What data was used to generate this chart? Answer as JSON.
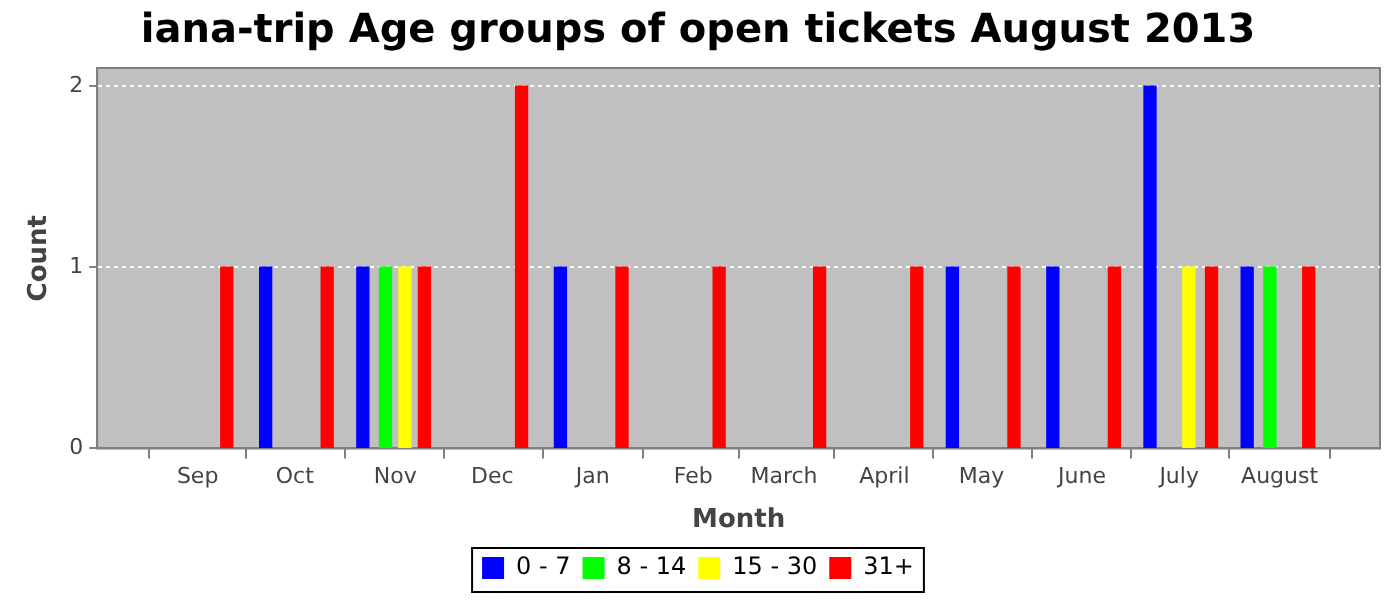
{
  "chart_data": {
    "type": "bar",
    "title": "iana-trip Age groups of open tickets August 2013",
    "xlabel": "Month",
    "ylabel": "Count",
    "xlim": [
      "2012-08-01",
      "2013-09-01"
    ],
    "xticks": [
      {
        "value": "2012-09-01",
        "label": "Sep"
      },
      {
        "value": "2012-10-01",
        "label": "Oct"
      },
      {
        "value": "2012-11-01",
        "label": "Nov"
      },
      {
        "value": "2012-12-01",
        "label": "Dec"
      },
      {
        "value": "2013-01-01",
        "label": "Jan"
      },
      {
        "value": "2013-02-01",
        "label": "Feb"
      },
      {
        "value": "2013-03-01",
        "label": "March"
      },
      {
        "value": "2013-04-01",
        "label": "April"
      },
      {
        "value": "2013-05-01",
        "label": "May"
      },
      {
        "value": "2013-06-01",
        "label": "June"
      },
      {
        "value": "2013-07-01",
        "label": "July"
      },
      {
        "value": "2013-08-01",
        "label": "August"
      }
    ],
    "ylim": [
      0,
      2.1
    ],
    "yticks": [
      0,
      1,
      2
    ],
    "grid": "y",
    "legend": "bottom",
    "series": [
      {
        "name": "0 - 7",
        "color": "#0000ff",
        "x": [
          "2012-09-22",
          "2012-10-22",
          "2012-12-22",
          "2013-04-22",
          "2013-05-23",
          "2013-06-22",
          "2013-07-22"
        ],
        "values": [
          1,
          1,
          1,
          1,
          1,
          2,
          1
        ]
      },
      {
        "name": "8 - 14",
        "color": "#00ff00",
        "x": [
          "2012-10-29",
          "2013-07-29"
        ],
        "values": [
          1,
          1
        ]
      },
      {
        "name": "15 - 30",
        "color": "#ffff00",
        "x": [
          "2012-11-04",
          "2013-07-04"
        ],
        "values": [
          1,
          1
        ]
      },
      {
        "name": "31+",
        "color": "#ff0000",
        "x": [
          "2012-09-10",
          "2012-10-11",
          "2012-11-10",
          "2012-12-10",
          "2013-01-10",
          "2013-02-09",
          "2013-03-12",
          "2013-04-11",
          "2013-05-11",
          "2013-06-11",
          "2013-07-11",
          "2013-08-10"
        ],
        "values": [
          1,
          1,
          1,
          2,
          1,
          1,
          1,
          1,
          1,
          1,
          1,
          1
        ]
      }
    ]
  }
}
